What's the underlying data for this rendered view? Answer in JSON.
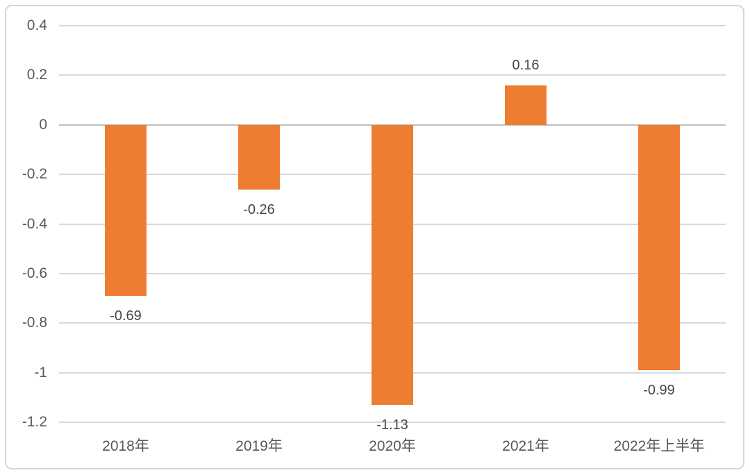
{
  "chart_data": {
    "type": "bar",
    "title": "",
    "xlabel": "",
    "ylabel": "",
    "categories": [
      "2018年",
      "2019年",
      "2020年",
      "2021年",
      "2022年上半年"
    ],
    "values": [
      -0.69,
      -0.26,
      -1.13,
      0.16,
      -0.99
    ],
    "value_labels": [
      "-0.69",
      "-0.26",
      "-1.13",
      "0.16",
      "-0.99"
    ],
    "y_ticks": [
      0.4,
      0.2,
      0,
      -0.2,
      -0.4,
      -0.6,
      -0.8,
      -1,
      -1.2
    ],
    "y_tick_labels": [
      "0.4",
      "0.2",
      "0",
      "-0.2",
      "-0.4",
      "-0.6",
      "-0.8",
      "-1",
      "-1.2"
    ],
    "ylim": [
      -1.2,
      0.4
    ],
    "grid": true,
    "legend_position": "none",
    "colors": {
      "bar": "#ED7D31",
      "gridline": "#D9D9D9",
      "zero_axis_line": "#BFBFBF",
      "axis_text": "#595959",
      "data_label_text": "#454545",
      "card_border": "#D6D6D6",
      "background": "#FFFFFF"
    }
  }
}
